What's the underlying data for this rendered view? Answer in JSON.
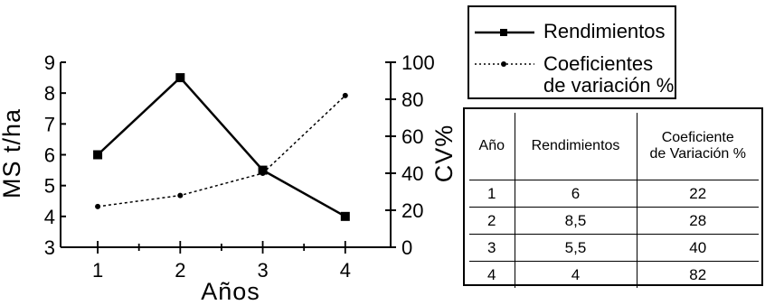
{
  "chart_data": {
    "type": "line",
    "xlabel": "Años",
    "ylabel": "MS t/ha",
    "y2label": "CV%",
    "x": [
      1,
      2,
      3,
      4
    ],
    "x_ticks": [
      "1",
      "2",
      "3",
      "4"
    ],
    "ylim": [
      3,
      9
    ],
    "y_ticks": [
      "3",
      "4",
      "5",
      "6",
      "7",
      "8",
      "9"
    ],
    "y2lim": [
      0,
      100
    ],
    "y2_ticks": [
      "0",
      "20",
      "40",
      "60",
      "80",
      "100"
    ],
    "series": [
      {
        "name": "Rendimientos",
        "axis": "left",
        "style": "solid",
        "marker": "square",
        "values": [
          6,
          8.5,
          5.5,
          4
        ]
      },
      {
        "name": "Coeficientes de variación %",
        "axis": "right",
        "style": "dotted",
        "marker": "circle",
        "values": [
          22,
          28,
          40,
          82
        ]
      }
    ],
    "grid": false
  },
  "legend": {
    "rendimientos": "Rendimientos",
    "coef_line1": "Coeficientes",
    "coef_line2": "de variación %"
  },
  "table": {
    "headers": {
      "year": "Año",
      "yield": "Rendimientos",
      "coef_line1": "Coeficiente",
      "coef_line2": "de Variación %"
    },
    "rows": [
      [
        "1",
        "6",
        "22"
      ],
      [
        "2",
        "8,5",
        "28"
      ],
      [
        "3",
        "5,5",
        "40"
      ],
      [
        "4",
        "4",
        "82"
      ]
    ]
  }
}
